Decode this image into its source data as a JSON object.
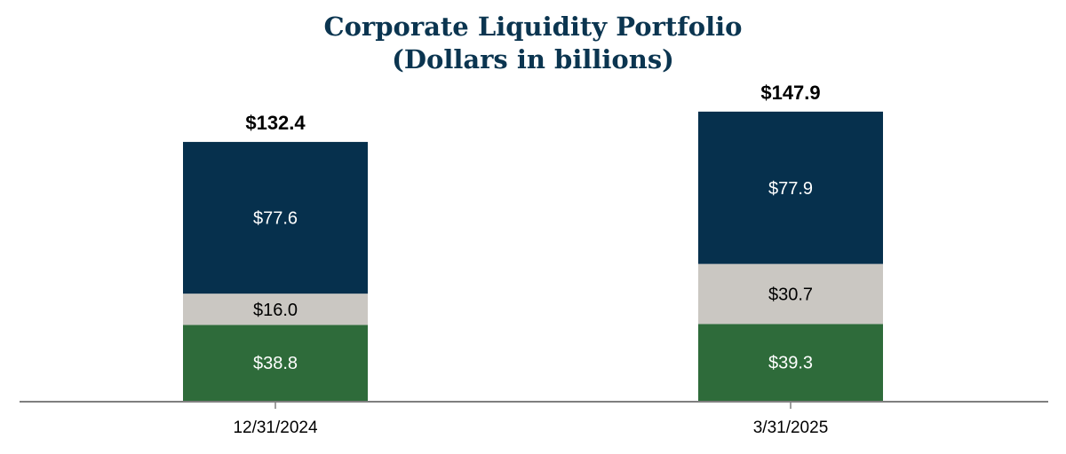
{
  "chart_data": {
    "type": "bar",
    "stacked": true,
    "title": "Corporate Liquidity Portfolio",
    "subtitle": "(Dollars in billions)",
    "categories": [
      "12/31/2024",
      "3/31/2025"
    ],
    "totals": [
      "$132.4",
      "$147.9"
    ],
    "total_values": [
      132.4,
      147.9
    ],
    "ylim": [
      0,
      150
    ],
    "grid": false,
    "legend": "none",
    "series": [
      {
        "name": "bottom",
        "color": "#2e6b3a",
        "label_color": "#ffffff",
        "values": [
          38.8,
          39.3
        ],
        "labels": [
          "$38.8",
          "$39.3"
        ]
      },
      {
        "name": "middle",
        "color": "#cac7c2",
        "label_color": "#000000",
        "values": [
          16.0,
          30.7
        ],
        "labels": [
          "$16.0",
          "$30.7"
        ]
      },
      {
        "name": "top",
        "color": "#06304d",
        "label_color": "#ffffff",
        "values": [
          77.6,
          77.9
        ],
        "labels": [
          "$77.6",
          "$77.9"
        ]
      }
    ]
  }
}
